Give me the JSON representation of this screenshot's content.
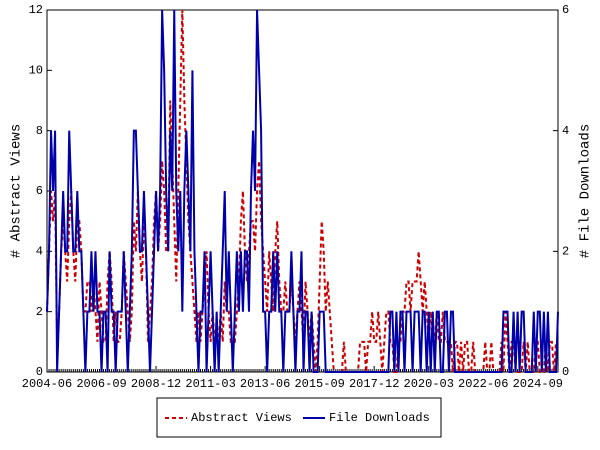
{
  "chart_data": {
    "type": "line",
    "y_label": "# Abstract Views",
    "y2_label": "# File Downloads",
    "categories": [
      "2004-06",
      null,
      null,
      null,
      null,
      null,
      null,
      null,
      null,
      null,
      null,
      null,
      null,
      null,
      null,
      null,
      null,
      null,
      null,
      null,
      null,
      null,
      null,
      null,
      null,
      null,
      null,
      "2006-09",
      null,
      null,
      null,
      null,
      null,
      null,
      null,
      null,
      null,
      null,
      null,
      null,
      null,
      null,
      null,
      null,
      null,
      null,
      null,
      null,
      null,
      null,
      null,
      null,
      null,
      null,
      "2008-12",
      null,
      null,
      null,
      null,
      null,
      null,
      null,
      null,
      null,
      null,
      null,
      null,
      null,
      null,
      null,
      null,
      null,
      null,
      null,
      null,
      null,
      null,
      null,
      null,
      null,
      null,
      "2011-03",
      null,
      null,
      null,
      null,
      null,
      null,
      null,
      null,
      null,
      null,
      null,
      null,
      null,
      null,
      null,
      null,
      null,
      null,
      null,
      null,
      null,
      null,
      null,
      null,
      null,
      null,
      "2013-06",
      null,
      null,
      null,
      null,
      null,
      null,
      null,
      null,
      null,
      null,
      null,
      null,
      null,
      null,
      null,
      null,
      null,
      null,
      null,
      null,
      null,
      null,
      null,
      null,
      null,
      null,
      "2015-09",
      null,
      null,
      null,
      null,
      null,
      null,
      null,
      null,
      null,
      null,
      null,
      null,
      null,
      null,
      null,
      null,
      null,
      null,
      null,
      null,
      null,
      null,
      null,
      null,
      null,
      null,
      "2017-12",
      null,
      null,
      null,
      null,
      null,
      null,
      null,
      null,
      null,
      null,
      null,
      null,
      null,
      null,
      null,
      null,
      null,
      null,
      null,
      null,
      null,
      null,
      null,
      null,
      null,
      null,
      "2020-03",
      null,
      null,
      null,
      null,
      null,
      null,
      null,
      null,
      null,
      null,
      null,
      null,
      null,
      null,
      null,
      null,
      null,
      null,
      null,
      null,
      null,
      null,
      null,
      null,
      null,
      null,
      "2022-06",
      null,
      null,
      null,
      null,
      null,
      null,
      null,
      null,
      null,
      null,
      null,
      null,
      null,
      null,
      null,
      null,
      null,
      null,
      null,
      null,
      null,
      null,
      null,
      null,
      null,
      null,
      "2024-09",
      null,
      null,
      null,
      null,
      null,
      null,
      null,
      null,
      null,
      null
    ],
    "series": [
      {
        "name": "Abstract Views",
        "color": "#cc0000",
        "line_style": "dashed",
        "values": [
          2,
          4,
          6,
          5,
          6,
          1,
          2,
          4,
          5,
          4,
          3,
          5,
          6,
          4,
          3,
          5,
          5,
          4,
          2,
          2,
          3,
          3,
          2,
          3,
          2,
          1,
          3,
          2,
          1,
          1,
          3,
          4,
          3,
          1,
          2,
          1,
          1,
          2,
          4,
          3,
          2,
          1,
          2,
          5,
          4,
          6,
          4,
          3,
          5,
          4,
          1,
          2,
          3,
          5,
          6,
          4,
          5,
          7,
          6,
          4,
          4,
          9,
          7,
          5,
          3,
          6,
          9,
          12,
          9,
          7,
          5,
          4,
          3,
          2,
          1,
          2,
          1,
          2,
          3,
          4,
          2,
          1,
          2,
          1,
          1,
          1,
          2,
          1,
          3,
          2,
          2,
          1,
          1,
          1,
          2,
          3,
          5,
          6,
          4,
          3,
          4,
          5,
          5,
          4,
          6,
          7,
          5,
          4,
          3,
          2,
          4,
          3,
          2,
          4,
          5,
          3,
          2,
          2,
          3,
          2,
          2,
          3,
          2,
          1,
          2,
          3,
          2,
          1,
          3,
          2,
          1,
          2,
          1,
          0,
          1,
          3,
          5,
          4,
          2,
          3,
          2,
          1,
          0,
          0,
          0,
          0,
          0,
          1,
          0,
          0,
          0,
          0,
          0,
          0,
          0,
          1,
          1,
          1,
          0,
          1,
          1,
          2,
          1,
          1,
          2,
          1,
          0,
          1,
          2,
          2,
          1,
          1,
          0,
          0,
          1,
          1,
          2,
          2,
          3,
          3,
          2,
          3,
          3,
          3,
          4,
          3,
          2,
          3,
          2,
          1,
          2,
          1,
          1,
          2,
          1,
          1,
          2,
          1,
          1,
          1,
          1,
          0,
          1,
          1,
          0,
          1,
          0,
          1,
          1,
          0,
          0,
          1,
          0,
          0,
          0,
          0,
          0,
          1,
          0,
          0,
          1,
          0,
          0,
          0,
          0,
          1,
          0,
          2,
          1,
          0,
          1,
          1,
          0,
          0,
          0,
          0,
          1,
          0,
          1,
          0,
          0,
          0,
          1,
          1,
          0,
          0,
          0,
          1,
          0,
          1,
          1,
          0,
          1,
          1
        ]
      },
      {
        "name": "File Downloads",
        "color": "#0000aa",
        "line_style": "solid",
        "axis": "y2",
        "values": [
          1,
          2,
          4,
          3,
          4,
          0,
          1,
          2,
          3,
          2,
          2,
          4,
          3,
          2,
          2,
          3,
          2,
          2,
          1,
          0,
          1,
          1,
          2,
          1,
          2,
          1,
          1,
          0,
          1,
          1,
          0,
          2,
          1,
          1,
          0,
          1,
          1,
          1,
          2,
          1,
          0,
          1,
          2,
          4,
          4,
          3,
          2,
          2,
          3,
          2,
          1,
          0,
          1,
          2,
          3,
          2,
          3,
          6,
          5,
          3,
          2,
          4,
          3,
          6,
          3,
          2,
          3,
          1,
          3,
          4,
          3,
          2,
          5,
          2,
          1,
          0,
          1,
          1,
          2,
          0,
          1,
          2,
          1,
          0,
          1,
          0,
          1,
          2,
          3,
          1,
          2,
          1,
          0,
          1,
          2,
          1,
          2,
          1,
          2,
          2,
          1,
          3,
          4,
          3,
          6,
          5,
          4,
          1,
          1,
          0,
          1,
          1,
          2,
          1,
          2,
          1,
          1,
          0,
          1,
          1,
          1,
          2,
          1,
          0,
          1,
          1,
          2,
          0,
          1,
          1,
          0,
          1,
          0,
          0,
          0,
          1,
          1,
          1,
          0,
          0,
          0,
          0,
          0,
          0,
          0,
          0,
          0,
          0,
          0,
          0,
          0,
          0,
          0,
          0,
          0,
          0,
          0,
          0,
          0,
          0,
          0,
          0,
          0,
          0,
          0,
          0,
          0,
          0,
          0,
          0,
          1,
          1,
          0,
          1,
          0,
          1,
          1,
          0,
          1,
          1,
          1,
          0,
          1,
          1,
          1,
          0,
          1,
          1,
          0,
          1,
          0,
          1,
          0,
          1,
          1,
          0,
          0,
          1,
          1,
          0,
          1,
          1,
          0,
          0,
          0,
          0,
          0,
          0,
          0,
          0,
          0,
          0,
          0,
          0,
          0,
          0,
          0,
          0,
          0,
          0,
          0,
          0,
          0,
          0,
          0,
          0,
          1,
          1,
          1,
          0,
          0,
          1,
          0,
          1,
          0,
          1,
          1,
          0,
          0,
          0,
          0,
          1,
          0,
          1,
          1,
          0,
          1,
          0,
          1,
          0,
          0,
          0,
          0,
          1
        ]
      }
    ],
    "ylim": [
      0,
      12
    ],
    "yticks": [
      0,
      2,
      4,
      6,
      8,
      10,
      12
    ],
    "y2lim": [
      0,
      6
    ],
    "y2ticks": [
      0,
      2,
      4,
      6
    ],
    "legend": "bottom",
    "grid": false
  }
}
